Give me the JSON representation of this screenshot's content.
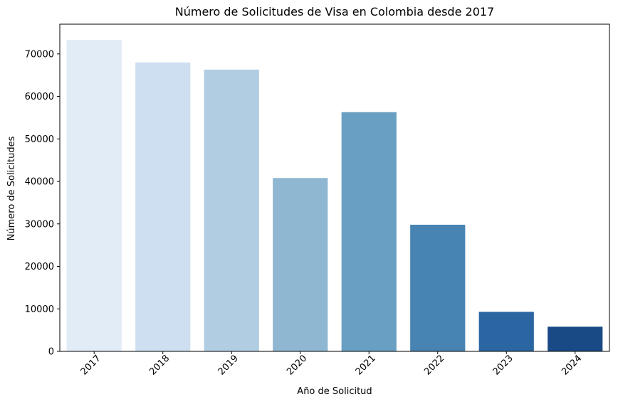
{
  "chart_data": {
    "type": "bar",
    "title": "Número de Solicitudes de Visa en Colombia desde 2017",
    "xlabel": "Año de Solicitud",
    "ylabel": "Número de Solicitudes",
    "categories": [
      "2017",
      "2018",
      "2019",
      "2020",
      "2021",
      "2022",
      "2023",
      "2024"
    ],
    "values": [
      73300,
      68000,
      66300,
      40800,
      56300,
      29800,
      9300,
      5800
    ],
    "colors": [
      "#e2ecf7",
      "#cddff0",
      "#b1cde2",
      "#8fb7d2",
      "#689fc2",
      "#4884b3",
      "#2b66a2",
      "#1a4a85"
    ],
    "ylim": [
      0,
      77000
    ],
    "yticks": [
      0,
      10000,
      20000,
      30000,
      40000,
      50000,
      60000,
      70000
    ],
    "grid": false,
    "legend": "none"
  }
}
